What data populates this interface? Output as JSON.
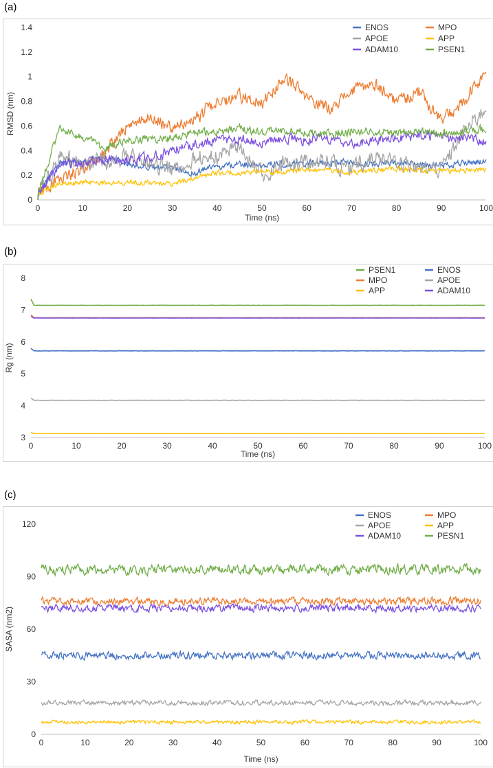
{
  "chart_data": [
    {
      "panel": "(a)",
      "type": "line",
      "xlabel": "Time (ns)",
      "ylabel": "RMSD (nm)",
      "xlim": [
        0,
        100
      ],
      "ylim": [
        0,
        1.4
      ],
      "xticks": [
        "0",
        "10",
        "20",
        "30",
        "40",
        "50",
        "60",
        "70",
        "80",
        "90",
        "100"
      ],
      "yticks": [
        "0",
        "0.2",
        "0.4",
        "0.6",
        "0.8",
        "1",
        "1.2",
        "1.4"
      ],
      "legend_position": "top-right",
      "legend_columns": 2,
      "x": [
        0,
        5,
        10,
        15,
        20,
        25,
        30,
        35,
        40,
        45,
        50,
        55,
        60,
        65,
        70,
        75,
        80,
        85,
        90,
        95,
        100
      ],
      "series": [
        {
          "name": "ENOS",
          "color": "#4472C4",
          "values": [
            0.05,
            0.3,
            0.32,
            0.34,
            0.3,
            0.27,
            0.25,
            0.22,
            0.27,
            0.29,
            0.28,
            0.29,
            0.3,
            0.31,
            0.3,
            0.29,
            0.3,
            0.29,
            0.28,
            0.3,
            0.31
          ],
          "noise": 0.04
        },
        {
          "name": "MPO",
          "color": "#ED7D31",
          "values": [
            0.05,
            0.18,
            0.25,
            0.38,
            0.6,
            0.68,
            0.58,
            0.65,
            0.8,
            0.85,
            0.78,
            1.0,
            0.82,
            0.75,
            0.88,
            0.95,
            0.8,
            0.88,
            0.65,
            0.78,
            1.05
          ],
          "noise": 0.08
        },
        {
          "name": "APOE",
          "color": "#A5A5A5",
          "values": [
            0.05,
            0.35,
            0.3,
            0.3,
            0.35,
            0.3,
            0.25,
            0.35,
            0.35,
            0.45,
            0.2,
            0.3,
            0.3,
            0.3,
            0.25,
            0.35,
            0.3,
            0.25,
            0.25,
            0.55,
            0.75
          ],
          "noise": 0.1
        },
        {
          "name": "APP",
          "color": "#FFC000",
          "values": [
            0.05,
            0.14,
            0.14,
            0.14,
            0.14,
            0.14,
            0.13,
            0.18,
            0.22,
            0.22,
            0.23,
            0.22,
            0.25,
            0.24,
            0.22,
            0.24,
            0.25,
            0.24,
            0.23,
            0.24,
            0.25
          ],
          "noise": 0.03
        },
        {
          "name": "ADAM10",
          "color": "#7B4FE0",
          "values": [
            0.05,
            0.28,
            0.3,
            0.33,
            0.32,
            0.35,
            0.4,
            0.45,
            0.48,
            0.5,
            0.47,
            0.5,
            0.48,
            0.5,
            0.45,
            0.48,
            0.5,
            0.52,
            0.5,
            0.5,
            0.48
          ],
          "noise": 0.06
        },
        {
          "name": "PSEN1",
          "color": "#70AD47",
          "values": [
            0.05,
            0.6,
            0.5,
            0.42,
            0.48,
            0.5,
            0.5,
            0.55,
            0.55,
            0.58,
            0.55,
            0.56,
            0.55,
            0.54,
            0.56,
            0.55,
            0.55,
            0.56,
            0.54,
            0.56,
            0.58
          ],
          "noise": 0.05
        }
      ]
    },
    {
      "panel": "(b)",
      "type": "line",
      "xlabel": "Time (ns)",
      "ylabel": "Rg (nm)",
      "xlim": [
        0,
        100
      ],
      "ylim": [
        3,
        8
      ],
      "xticks": [
        "0",
        "10",
        "20",
        "30",
        "40",
        "50",
        "60",
        "70",
        "80",
        "90",
        "100"
      ],
      "yticks": [
        "3",
        "4",
        "5",
        "6",
        "7",
        "8"
      ],
      "legend_position": "top-right",
      "legend_columns": 2,
      "x": [
        0,
        100
      ],
      "series": [
        {
          "name": "PSEN1",
          "color": "#70AD47",
          "values": [
            7.15,
            7.15
          ],
          "start": 7.35,
          "noise": 0.005
        },
        {
          "name": "ENOS",
          "color": "#4472C4",
          "values": [
            5.72,
            5.72
          ],
          "start": 5.8,
          "noise": 0.005
        },
        {
          "name": "MPO",
          "color": "#ED7D31",
          "values": [
            6.76,
            6.76
          ],
          "start": 6.85,
          "noise": 0.005
        },
        {
          "name": "APOE",
          "color": "#A5A5A5",
          "values": [
            4.17,
            4.17
          ],
          "start": 4.24,
          "noise": 0.005
        },
        {
          "name": "APP",
          "color": "#FFC000",
          "values": [
            3.13,
            3.13
          ],
          "start": 3.16,
          "noise": 0.005
        },
        {
          "name": "ADAM10",
          "color": "#7B4FE0",
          "values": [
            6.75,
            6.75
          ],
          "start": 6.8,
          "noise": 0.003
        }
      ]
    },
    {
      "panel": "(c)",
      "type": "line",
      "xlabel": "Time (ns)",
      "ylabel": "SASA (nm2)",
      "xlim": [
        0,
        100
      ],
      "ylim": [
        0,
        120
      ],
      "xticks": [
        "0",
        "10",
        "20",
        "30",
        "40",
        "50",
        "60",
        "70",
        "80",
        "90",
        "100"
      ],
      "yticks": [
        "0",
        "30",
        "60",
        "90",
        "120"
      ],
      "legend_position": "top-right",
      "legend_columns": 2,
      "x": [
        0,
        100
      ],
      "series": [
        {
          "name": "ENOS",
          "color": "#4472C4",
          "values": [
            45,
            45
          ],
          "noise": 3
        },
        {
          "name": "MPO",
          "color": "#ED7D31",
          "values": [
            76,
            76
          ],
          "noise": 3
        },
        {
          "name": "APOE",
          "color": "#A5A5A5",
          "values": [
            18,
            18
          ],
          "noise": 2
        },
        {
          "name": "APP",
          "color": "#FFC000",
          "values": [
            7,
            7
          ],
          "noise": 1.5
        },
        {
          "name": "ADAM10",
          "color": "#7B4FE0",
          "values": [
            72,
            72
          ],
          "noise": 3
        },
        {
          "name": "PESN1",
          "color": "#70AD47",
          "values": [
            94,
            94
          ],
          "noise": 4
        }
      ]
    }
  ]
}
